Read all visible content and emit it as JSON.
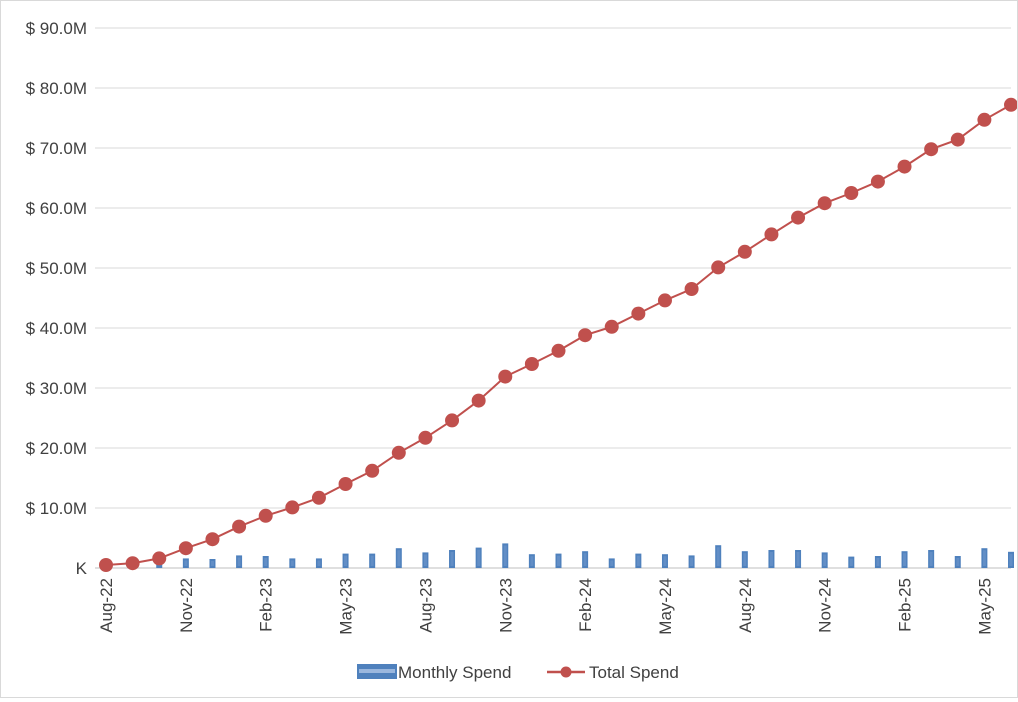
{
  "chart_data": {
    "type": "bar+line",
    "categories": [
      "Aug-22",
      "Sep-22",
      "Oct-22",
      "Nov-22",
      "Dec-22",
      "Jan-23",
      "Feb-23",
      "Mar-23",
      "Apr-23",
      "May-23",
      "Jun-23",
      "Jul-23",
      "Aug-23",
      "Sep-23",
      "Oct-23",
      "Nov-23",
      "Dec-23",
      "Jan-24",
      "Feb-24",
      "Mar-24",
      "Apr-24",
      "May-24",
      "Jun-24",
      "Jul-24",
      "Aug-24",
      "Sep-24",
      "Oct-24",
      "Nov-24",
      "Dec-24",
      "Jan-25",
      "Feb-25",
      "Mar-25",
      "Apr-25",
      "May-25",
      "Jun-25"
    ],
    "x_tick_labels": [
      "Aug-22",
      "Nov-22",
      "Feb-23",
      "May-23",
      "Aug-23",
      "Nov-23",
      "Feb-24",
      "May-24",
      "Aug-24",
      "Nov-24",
      "Feb-25",
      "May-25"
    ],
    "y_tick_labels": [
      "K",
      "$ 10.0M",
      "$ 20.0M",
      "$ 30.0M",
      "$ 40.0M",
      "$ 50.0M",
      "$ 60.0M",
      "$ 70.0M",
      "$ 80.0M",
      "$ 90.0M"
    ],
    "ylim": [
      0,
      90
    ],
    "y_unit": "millions USD",
    "grid": true,
    "legend_position": "bottom",
    "series": [
      {
        "name": "Monthly Spend",
        "kind": "bar",
        "color": "#4f81bd",
        "values": [
          0.3,
          0.5,
          0.7,
          1.6,
          1.5,
          2.1,
          2.0,
          1.6,
          1.6,
          2.4,
          2.4,
          3.3,
          2.6,
          3.0,
          3.4,
          4.1,
          2.3,
          2.4,
          2.8,
          1.6,
          2.4,
          2.3,
          2.1,
          3.8,
          2.8,
          3.0,
          3.0,
          2.6,
          1.9,
          2.0,
          2.8,
          3.0,
          2.0,
          3.3,
          2.7
        ]
      },
      {
        "name": "Total Spend",
        "kind": "line",
        "color": "#c0504d",
        "values": [
          0.5,
          0.8,
          1.6,
          3.3,
          4.8,
          6.9,
          8.7,
          10.1,
          11.7,
          14.0,
          16.2,
          19.2,
          21.7,
          24.6,
          27.9,
          31.9,
          34.0,
          36.2,
          38.8,
          40.2,
          42.4,
          44.6,
          46.5,
          50.1,
          52.7,
          55.6,
          58.4,
          60.8,
          62.5,
          64.4,
          66.9,
          69.8,
          71.4,
          74.7,
          77.2
        ]
      }
    ]
  }
}
